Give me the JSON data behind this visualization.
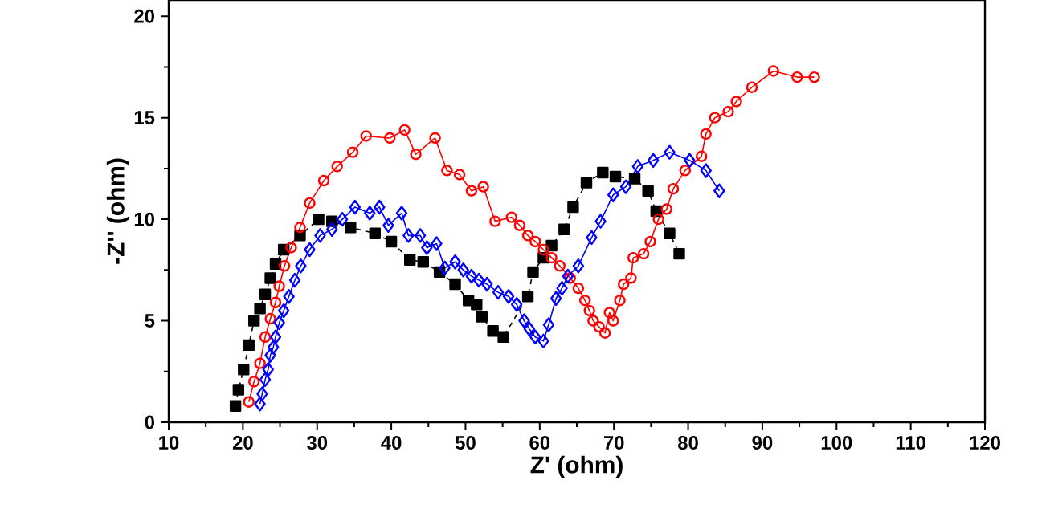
{
  "chart_data": {
    "type": "line",
    "xlabel": "Z' (ohm)",
    "ylabel": "-Z'' (ohm)",
    "xlim": [
      10,
      120
    ],
    "ylim": [
      0,
      20.8
    ],
    "xticks": [
      10,
      20,
      30,
      40,
      50,
      60,
      70,
      80,
      90,
      100,
      110,
      120
    ],
    "yticks": [
      0,
      5,
      10,
      15,
      20
    ],
    "series": [
      {
        "color": "#000000",
        "marker": "square",
        "line_style": "dashed",
        "x": [
          19.0,
          19.4,
          20.1,
          20.8,
          21.5,
          22.3,
          23.0,
          23.7,
          24.4,
          25.5,
          27.7,
          30.2,
          32.0,
          34.5,
          37.8,
          40.0,
          42.5,
          44.3,
          46.5,
          48.6,
          50.4,
          51.5,
          52.2,
          53.7,
          55.1,
          58.4,
          59.1,
          60.5,
          61.6,
          63.3,
          64.5,
          66.3,
          68.5,
          70.2,
          72.8,
          74.6,
          75.7,
          77.5,
          78.8
        ],
        "values": [
          0.8,
          1.6,
          2.6,
          3.8,
          5.0,
          5.6,
          6.3,
          7.1,
          7.8,
          8.5,
          9.2,
          10.0,
          9.9,
          9.6,
          9.3,
          8.9,
          8.0,
          7.9,
          7.4,
          6.8,
          6.0,
          5.8,
          5.2,
          4.5,
          4.2,
          6.2,
          7.4,
          8.1,
          8.7,
          9.5,
          10.6,
          11.8,
          12.3,
          12.1,
          12.0,
          11.4,
          10.4,
          9.3,
          8.3
        ]
      },
      {
        "color": "#ff0000",
        "marker": "circle",
        "line_style": "solid",
        "x": [
          20.8,
          21.5,
          22.3,
          23.0,
          23.7,
          24.4,
          24.9,
          25.6,
          26.5,
          27.7,
          29.0,
          30.9,
          32.7,
          34.8,
          36.6,
          39.8,
          41.8,
          43.3,
          45.9,
          47.5,
          49.2,
          50.8,
          52.4,
          54.0,
          56.2,
          57.3,
          58.4,
          59.4,
          60.5,
          61.6,
          62.7,
          64.1,
          65.2,
          66.1,
          66.7,
          67.2,
          68.0,
          68.8,
          69.4,
          69.9,
          70.8,
          71.3,
          72.3,
          72.6,
          74.0,
          74.9,
          76.0,
          77.1,
          78.0,
          79.6,
          81.8,
          82.4,
          83.6,
          85.4,
          86.5,
          88.6,
          91.5,
          94.7,
          97.0
        ],
        "values": [
          1.0,
          2.0,
          2.9,
          4.2,
          5.1,
          5.9,
          6.7,
          7.7,
          8.6,
          9.6,
          10.8,
          11.9,
          12.6,
          13.3,
          14.1,
          14.0,
          14.4,
          13.2,
          14.0,
          12.4,
          12.2,
          11.4,
          11.6,
          9.9,
          10.1,
          9.7,
          9.2,
          8.9,
          8.5,
          8.1,
          7.7,
          7.1,
          6.6,
          6.0,
          5.5,
          5.0,
          4.7,
          4.4,
          5.4,
          5.0,
          6.0,
          6.8,
          7.1,
          8.1,
          8.3,
          8.9,
          10.0,
          10.5,
          11.5,
          12.4,
          13.1,
          14.2,
          15.0,
          15.3,
          15.8,
          16.5,
          17.3,
          17.0,
          17.0
        ]
      },
      {
        "color": "#0000ff",
        "marker": "diamond",
        "line_style": "solid",
        "x": [
          22.3,
          22.6,
          23.0,
          23.4,
          23.7,
          24.1,
          24.4,
          24.9,
          25.5,
          26.2,
          27.0,
          27.8,
          29.0,
          30.4,
          32.0,
          33.4,
          35.1,
          37.1,
          38.4,
          39.6,
          41.4,
          42.3,
          43.9,
          44.8,
          46.1,
          47.2,
          48.6,
          49.7,
          50.8,
          51.8,
          52.9,
          54.4,
          55.8,
          56.9,
          57.9,
          58.6,
          59.4,
          60.5,
          61.2,
          62.2,
          63.0,
          63.8,
          65.2,
          67.0,
          68.2,
          69.9,
          71.6,
          73.2,
          75.3,
          77.5,
          80.2,
          82.4,
          84.2
        ],
        "values": [
          0.9,
          1.4,
          2.1,
          2.6,
          3.3,
          3.7,
          4.2,
          4.9,
          5.5,
          6.2,
          7.0,
          7.7,
          8.5,
          9.2,
          9.5,
          10.0,
          10.6,
          10.3,
          10.6,
          9.7,
          10.3,
          9.2,
          9.2,
          8.6,
          8.8,
          7.6,
          7.9,
          7.5,
          7.2,
          7.0,
          6.8,
          6.4,
          6.2,
          5.8,
          5.0,
          4.6,
          4.2,
          4.0,
          4.8,
          6.1,
          6.6,
          7.2,
          7.7,
          9.1,
          9.9,
          11.2,
          11.6,
          12.6,
          12.9,
          13.3,
          12.9,
          12.4,
          11.4
        ]
      }
    ]
  }
}
